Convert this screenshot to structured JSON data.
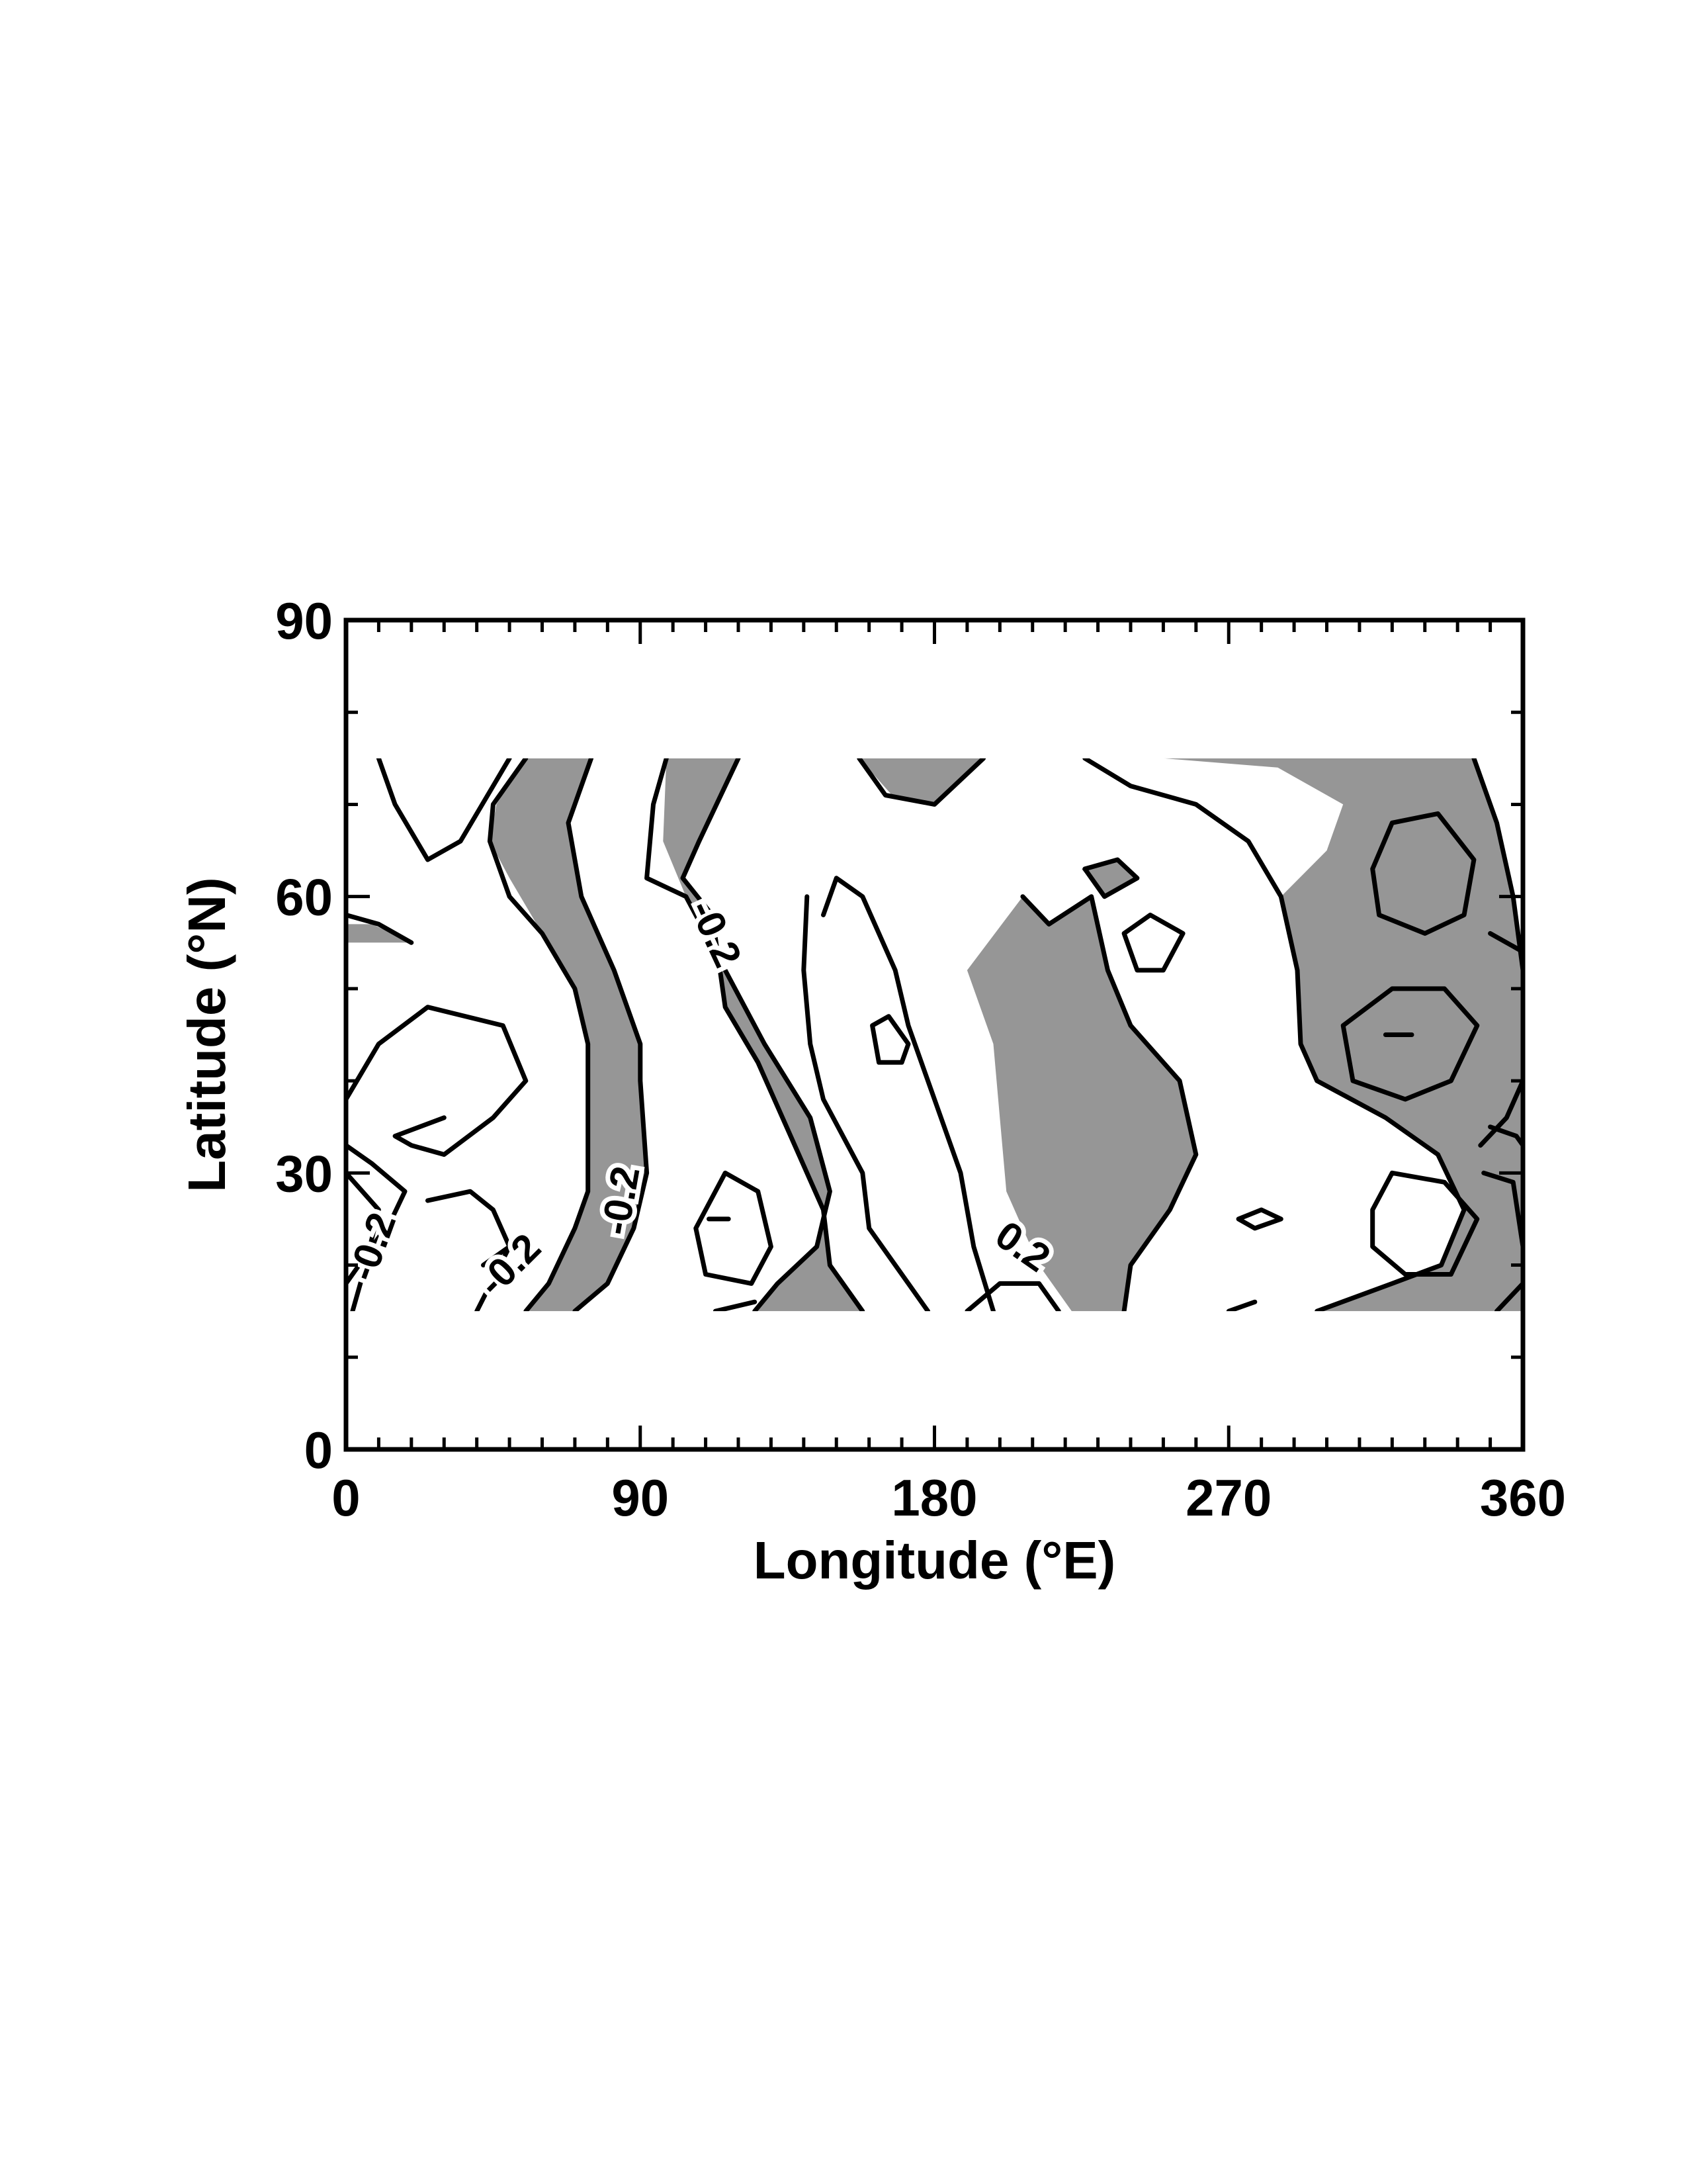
{
  "chart_data": {
    "type": "contour",
    "xlabel": "Longitude (°E)",
    "ylabel": "Latitude (°N)",
    "xlim": [
      0,
      360
    ],
    "ylim": [
      0,
      90
    ],
    "x_ticks": [
      0,
      90,
      180,
      270,
      360
    ],
    "y_ticks": [
      0,
      30,
      60,
      90
    ],
    "x_minor_step": 10,
    "y_minor_step": 10,
    "data_extent": {
      "lon": [
        0,
        360
      ],
      "lat": [
        15,
        75
      ]
    },
    "shading": {
      "color": "#969696",
      "meaning": "regions above the 0.2 contour level"
    },
    "contour_levels": [
      -0.2,
      0.2
    ],
    "contour_labels": [
      {
        "text": "-0.2",
        "lon": 8,
        "lat": 22,
        "angle": -70
      },
      {
        "text": "-0.2",
        "lon": 50,
        "lat": 20,
        "angle": -45
      },
      {
        "text": "-0.2",
        "lon": 84,
        "lat": 27,
        "angle": -80
      },
      {
        "text": "-0.2",
        "lon": 113,
        "lat": 56,
        "angle": 65
      },
      {
        "text": "0.2",
        "lon": 207,
        "lat": 22,
        "angle": 35
      }
    ],
    "shaded_regions": [
      [
        [
          55,
          75
        ],
        [
          75,
          75
        ],
        [
          68,
          68
        ],
        [
          72,
          60
        ],
        [
          82,
          52
        ],
        [
          90,
          44
        ],
        [
          90,
          40
        ],
        [
          92,
          30
        ],
        [
          88,
          24
        ],
        [
          80,
          18
        ],
        [
          70,
          15
        ],
        [
          55,
          15
        ],
        [
          62,
          18
        ],
        [
          70,
          24
        ],
        [
          74,
          28
        ],
        [
          74,
          34
        ],
        [
          74,
          44
        ],
        [
          70,
          50
        ],
        [
          60,
          56
        ],
        [
          50,
          62
        ],
        [
          44,
          66
        ],
        [
          46,
          70
        ]
      ],
      [
        [
          98,
          75
        ],
        [
          120,
          75
        ],
        [
          108,
          66
        ],
        [
          103,
          62
        ],
        [
          112,
          58
        ],
        [
          116,
          48
        ],
        [
          126,
          42
        ],
        [
          136,
          34
        ],
        [
          146,
          26
        ],
        [
          148,
          20
        ],
        [
          158,
          15
        ],
        [
          125,
          15
        ],
        [
          132,
          18
        ],
        [
          144,
          22
        ],
        [
          148,
          28
        ],
        [
          142,
          36
        ],
        [
          128,
          44
        ],
        [
          116,
          52
        ],
        [
          104,
          60
        ],
        [
          97,
          66
        ]
      ],
      [
        [
          157,
          75
        ],
        [
          195,
          75
        ],
        [
          180,
          70
        ],
        [
          167,
          71
        ]
      ],
      [
        [
          226,
          75
        ],
        [
          345,
          75
        ],
        [
          352,
          68
        ],
        [
          357,
          60
        ],
        [
          360,
          50
        ],
        [
          360,
          40
        ],
        [
          360,
          30
        ],
        [
          360,
          15
        ],
        [
          297,
          15
        ],
        [
          320,
          18
        ],
        [
          335,
          20
        ],
        [
          342,
          26
        ],
        [
          334,
          32
        ],
        [
          318,
          36
        ],
        [
          297,
          40
        ],
        [
          292,
          44
        ],
        [
          291,
          52
        ],
        [
          286,
          60
        ],
        [
          300,
          65
        ],
        [
          305,
          70
        ],
        [
          285,
          74
        ],
        [
          250,
          75
        ]
      ],
      [
        [
          207,
          60
        ],
        [
          215,
          57
        ],
        [
          228,
          60
        ],
        [
          233,
          52
        ],
        [
          240,
          46
        ],
        [
          255,
          40
        ],
        [
          260,
          32
        ],
        [
          252,
          26
        ],
        [
          240,
          20
        ],
        [
          238,
          15
        ],
        [
          222,
          15
        ],
        [
          212,
          20
        ],
        [
          202,
          28
        ],
        [
          200,
          36
        ],
        [
          198,
          44
        ],
        [
          190,
          52
        ]
      ],
      [
        [
          225,
          63
        ],
        [
          236,
          64
        ],
        [
          242,
          62
        ],
        [
          232,
          60
        ]
      ],
      [
        [
          0,
          57
        ],
        [
          8,
          57
        ],
        [
          20,
          55
        ],
        [
          6,
          55
        ],
        [
          0,
          55
        ]
      ]
    ],
    "contour_lines": [
      [
        [
          10,
          75
        ],
        [
          15,
          70
        ],
        [
          25,
          64
        ],
        [
          35,
          66
        ],
        [
          45,
          72
        ],
        [
          50,
          75
        ]
      ],
      [
        [
          55,
          75
        ],
        [
          45,
          70
        ],
        [
          44,
          66
        ],
        [
          50,
          60
        ],
        [
          60,
          56
        ],
        [
          70,
          50
        ],
        [
          74,
          44
        ],
        [
          74,
          34
        ],
        [
          74,
          28
        ],
        [
          70,
          24
        ],
        [
          62,
          18
        ],
        [
          55,
          15
        ]
      ],
      [
        [
          75,
          75
        ],
        [
          68,
          68
        ],
        [
          72,
          60
        ],
        [
          82,
          52
        ],
        [
          90,
          44
        ],
        [
          90,
          40
        ],
        [
          92,
          30
        ],
        [
          88,
          24
        ],
        [
          80,
          18
        ],
        [
          70,
          15
        ]
      ],
      [
        [
          98,
          75
        ],
        [
          94,
          70
        ],
        [
          92,
          62
        ],
        [
          104,
          60
        ],
        [
          116,
          52
        ],
        [
          128,
          44
        ],
        [
          142,
          36
        ],
        [
          148,
          28
        ],
        [
          144,
          22
        ],
        [
          132,
          18
        ],
        [
          125,
          15
        ]
      ],
      [
        [
          120,
          75
        ],
        [
          108,
          66
        ],
        [
          103,
          62
        ],
        [
          112,
          58
        ],
        [
          116,
          48
        ],
        [
          126,
          42
        ],
        [
          136,
          34
        ],
        [
          146,
          26
        ],
        [
          148,
          20
        ],
        [
          158,
          15
        ]
      ],
      [
        [
          113,
          15
        ],
        [
          125,
          16
        ]
      ],
      [
        [
          107,
          24
        ],
        [
          116,
          30
        ],
        [
          126,
          28
        ],
        [
          130,
          22
        ],
        [
          124,
          18
        ],
        [
          110,
          19
        ],
        [
          107,
          24
        ]
      ],
      [
        [
          111,
          25
        ],
        [
          117,
          25
        ],
        [
          111,
          25
        ]
      ],
      [
        [
          157,
          75
        ],
        [
          165,
          71
        ],
        [
          180,
          70
        ],
        [
          195,
          75
        ]
      ],
      [
        [
          146,
          58
        ],
        [
          150,
          62
        ],
        [
          158,
          60
        ],
        [
          168,
          52
        ],
        [
          172,
          46
        ],
        [
          180,
          38
        ],
        [
          188,
          30
        ],
        [
          192,
          22
        ],
        [
          198,
          15
        ]
      ],
      [
        [
          161,
          46
        ],
        [
          166,
          47
        ],
        [
          172,
          44
        ],
        [
          170,
          42
        ],
        [
          163,
          42
        ],
        [
          161,
          46
        ]
      ],
      [
        [
          141,
          60
        ],
        [
          140,
          52
        ],
        [
          142,
          44
        ],
        [
          146,
          38
        ],
        [
          158,
          30
        ],
        [
          160,
          24
        ],
        [
          172,
          18
        ],
        [
          178,
          15
        ]
      ],
      [
        [
          190,
          15
        ],
        [
          200,
          18
        ],
        [
          212,
          18
        ],
        [
          218,
          15
        ]
      ],
      [
        [
          207,
          60
        ],
        [
          215,
          57
        ],
        [
          228,
          60
        ],
        [
          233,
          52
        ],
        [
          240,
          46
        ],
        [
          255,
          40
        ],
        [
          260,
          32
        ],
        [
          252,
          26
        ],
        [
          240,
          20
        ],
        [
          238,
          15
        ]
      ],
      [
        [
          226,
          75
        ],
        [
          240,
          72
        ],
        [
          260,
          70
        ],
        [
          276,
          66
        ],
        [
          286,
          60
        ],
        [
          291,
          52
        ],
        [
          292,
          44
        ],
        [
          297,
          40
        ],
        [
          318,
          36
        ],
        [
          334,
          32
        ],
        [
          342,
          26
        ],
        [
          335,
          20
        ],
        [
          320,
          18
        ],
        [
          297,
          15
        ]
      ],
      [
        [
          270,
          15
        ],
        [
          278,
          16
        ]
      ],
      [
        [
          226,
          63
        ],
        [
          236,
          64
        ],
        [
          242,
          62
        ],
        [
          232,
          60
        ],
        [
          226,
          63
        ]
      ],
      [
        [
          238,
          56
        ],
        [
          246,
          58
        ],
        [
          256,
          56
        ],
        [
          250,
          52
        ],
        [
          242,
          52
        ],
        [
          238,
          56
        ]
      ],
      [
        [
          273,
          25
        ],
        [
          280,
          26
        ],
        [
          286,
          25
        ],
        [
          278,
          24
        ],
        [
          273,
          25
        ]
      ],
      [
        [
          345,
          75
        ],
        [
          352,
          68
        ],
        [
          357,
          60
        ],
        [
          360,
          52
        ]
      ],
      [
        [
          360,
          40
        ],
        [
          355,
          36
        ],
        [
          347,
          33
        ]
      ],
      [
        [
          348,
          30
        ],
        [
          357,
          29
        ],
        [
          360,
          22
        ],
        [
          360,
          18
        ],
        [
          352,
          15
        ]
      ],
      [
        [
          314,
          63
        ],
        [
          320,
          68
        ],
        [
          334,
          69
        ],
        [
          345,
          64
        ],
        [
          342,
          58
        ],
        [
          330,
          56
        ],
        [
          316,
          58
        ],
        [
          314,
          63
        ]
      ],
      [
        [
          305,
          46
        ],
        [
          320,
          50
        ],
        [
          336,
          50
        ],
        [
          346,
          46
        ],
        [
          338,
          40
        ],
        [
          324,
          38
        ],
        [
          308,
          40
        ],
        [
          305,
          46
        ]
      ],
      [
        [
          318,
          45
        ],
        [
          326,
          45
        ],
        [
          318,
          45
        ]
      ],
      [
        [
          314,
          26
        ],
        [
          320,
          30
        ],
        [
          336,
          29
        ],
        [
          346,
          25
        ],
        [
          338,
          19
        ],
        [
          324,
          19
        ],
        [
          314,
          22
        ],
        [
          314,
          26
        ]
      ],
      [
        [
          0,
          58
        ],
        [
          10,
          57
        ],
        [
          20,
          55
        ]
      ],
      [
        [
          350,
          56
        ],
        [
          360,
          54
        ]
      ],
      [
        [
          350,
          35
        ],
        [
          358,
          34
        ],
        [
          360,
          33
        ]
      ],
      [
        [
          0,
          38
        ],
        [
          10,
          44
        ],
        [
          25,
          48
        ],
        [
          48,
          46
        ],
        [
          55,
          40
        ],
        [
          45,
          36
        ],
        [
          30,
          32
        ],
        [
          20,
          33
        ],
        [
          15,
          34
        ],
        [
          30,
          36
        ]
      ],
      [
        [
          0,
          33
        ],
        [
          8,
          31
        ],
        [
          18,
          28
        ],
        [
          14,
          25
        ],
        [
          0,
          18
        ]
      ],
      [
        [
          0,
          30
        ],
        [
          10,
          26
        ],
        [
          6,
          20
        ],
        [
          2,
          15
        ]
      ],
      [
        [
          25,
          27
        ],
        [
          38,
          28
        ],
        [
          45,
          26
        ],
        [
          50,
          22
        ],
        [
          42,
          20
        ]
      ],
      [
        [
          40,
          15
        ],
        [
          50,
          22
        ]
      ]
    ]
  }
}
